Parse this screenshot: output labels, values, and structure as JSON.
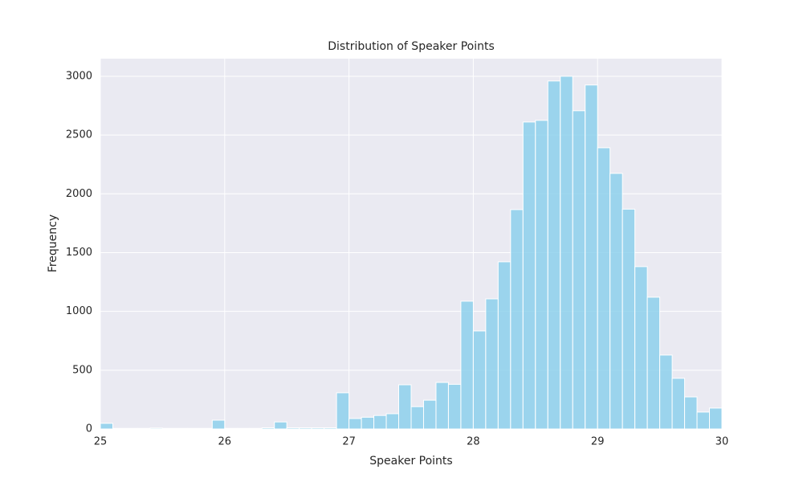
{
  "chart_data": {
    "type": "histogram",
    "title": "Distribution of Speaker Points",
    "x_label": "Speaker Points",
    "y_label": "Frequency",
    "bins": [
      25.0,
      25.1,
      25.2,
      25.3,
      25.4,
      25.5,
      25.6,
      25.7,
      25.8,
      25.9,
      26.0,
      26.1,
      26.2,
      26.3,
      26.4,
      26.5,
      26.6,
      26.7,
      26.8,
      26.9,
      27.0,
      27.1,
      27.2,
      27.3,
      27.4,
      27.5,
      27.6,
      27.7,
      27.8,
      27.9,
      28.0,
      28.1,
      28.2,
      28.3,
      28.4,
      28.5,
      28.6,
      28.7,
      28.8,
      28.9,
      29.0,
      29.1,
      29.2,
      29.3,
      29.4,
      29.5,
      29.6,
      29.7,
      29.8,
      29.9,
      30.0
    ],
    "counts": [
      48,
      5,
      5,
      5,
      8,
      5,
      5,
      5,
      5,
      75,
      5,
      5,
      5,
      10,
      60,
      10,
      10,
      10,
      10,
      308,
      89,
      100,
      115,
      130,
      376,
      190,
      245,
      396,
      380,
      1087,
      834,
      1107,
      1422,
      1866,
      2611,
      2625,
      2960,
      3000,
      2707,
      2926,
      2392,
      2174,
      1870,
      1381,
      1121,
      629,
      431,
      273,
      144,
      178
    ],
    "color": "#87ceeb",
    "xlim": [
      25,
      30
    ],
    "xticks": [
      25,
      26,
      27,
      28,
      29,
      30
    ],
    "ylim": [
      0,
      3150
    ],
    "yticks": [
      0,
      500,
      1000,
      1500,
      2000,
      2500,
      3000
    ],
    "grid": true
  }
}
